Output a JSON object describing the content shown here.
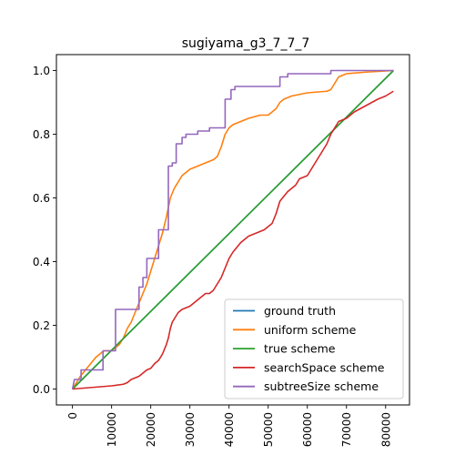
{
  "chart_data": {
    "type": "line",
    "title": "sugiyama_g3_7_7_7",
    "xlabel": "",
    "ylabel": "",
    "xlim": [
      -4100,
      86100
    ],
    "ylim": [
      -0.05,
      1.05
    ],
    "xticks": [
      0,
      10000,
      20000,
      30000,
      40000,
      50000,
      60000,
      70000,
      80000
    ],
    "yticks": [
      0.0,
      0.2,
      0.4,
      0.6,
      0.8,
      1.0
    ],
    "xtick_labels": [
      "0",
      "10000",
      "20000",
      "30000",
      "40000",
      "50000",
      "60000",
      "70000",
      "80000"
    ],
    "ytick_labels": [
      "0.0",
      "0.2",
      "0.4",
      "0.6",
      "0.8",
      "1.0"
    ],
    "legend_position": "lower-right",
    "grid": false,
    "series": [
      {
        "name": "ground truth",
        "color": "#1f77b4",
        "points": [
          [
            0,
            0
          ],
          [
            82000,
            1.0
          ]
        ]
      },
      {
        "name": "uniform scheme",
        "color": "#ff7f0e",
        "points": [
          [
            0,
            0
          ],
          [
            1000,
            0.02
          ],
          [
            2000,
            0.04
          ],
          [
            4000,
            0.07
          ],
          [
            6000,
            0.1
          ],
          [
            8000,
            0.12
          ],
          [
            10000,
            0.12
          ],
          [
            11000,
            0.13
          ],
          [
            12000,
            0.14
          ],
          [
            13000,
            0.16
          ],
          [
            14000,
            0.19
          ],
          [
            15000,
            0.21
          ],
          [
            16000,
            0.24
          ],
          [
            17000,
            0.27
          ],
          [
            18000,
            0.3
          ],
          [
            19000,
            0.33
          ],
          [
            20000,
            0.37
          ],
          [
            21000,
            0.41
          ],
          [
            22000,
            0.45
          ],
          [
            23000,
            0.49
          ],
          [
            24000,
            0.54
          ],
          [
            25000,
            0.6
          ],
          [
            26000,
            0.63
          ],
          [
            27000,
            0.65
          ],
          [
            28000,
            0.67
          ],
          [
            29000,
            0.68
          ],
          [
            30000,
            0.69
          ],
          [
            32000,
            0.7
          ],
          [
            34000,
            0.71
          ],
          [
            36000,
            0.72
          ],
          [
            37000,
            0.73
          ],
          [
            38000,
            0.76
          ],
          [
            39000,
            0.8
          ],
          [
            40000,
            0.82
          ],
          [
            41000,
            0.83
          ],
          [
            43000,
            0.84
          ],
          [
            45000,
            0.85
          ],
          [
            48000,
            0.86
          ],
          [
            50000,
            0.86
          ],
          [
            51000,
            0.87
          ],
          [
            52000,
            0.88
          ],
          [
            53000,
            0.9
          ],
          [
            54000,
            0.91
          ],
          [
            56000,
            0.92
          ],
          [
            60000,
            0.93
          ],
          [
            65000,
            0.935
          ],
          [
            66000,
            0.94
          ],
          [
            67000,
            0.96
          ],
          [
            68000,
            0.98
          ],
          [
            70000,
            0.99
          ],
          [
            75000,
            0.995
          ],
          [
            82000,
            1.0
          ]
        ]
      },
      {
        "name": "true scheme",
        "color": "#2ca02c",
        "points": [
          [
            0,
            0
          ],
          [
            82000,
            1.0
          ]
        ]
      },
      {
        "name": "searchSpace scheme",
        "color": "#d62728",
        "points": [
          [
            0,
            0
          ],
          [
            5000,
            0.005
          ],
          [
            10000,
            0.01
          ],
          [
            13000,
            0.015
          ],
          [
            14000,
            0.02
          ],
          [
            15000,
            0.03
          ],
          [
            16000,
            0.035
          ],
          [
            17000,
            0.04
          ],
          [
            18000,
            0.05
          ],
          [
            19000,
            0.06
          ],
          [
            20000,
            0.065
          ],
          [
            21000,
            0.08
          ],
          [
            22000,
            0.09
          ],
          [
            23000,
            0.11
          ],
          [
            24000,
            0.14
          ],
          [
            24500,
            0.16
          ],
          [
            25000,
            0.19
          ],
          [
            25500,
            0.21
          ],
          [
            26000,
            0.22
          ],
          [
            27000,
            0.24
          ],
          [
            28000,
            0.25
          ],
          [
            30000,
            0.26
          ],
          [
            31000,
            0.27
          ],
          [
            32000,
            0.28
          ],
          [
            33000,
            0.29
          ],
          [
            34000,
            0.3
          ],
          [
            35000,
            0.3
          ],
          [
            36000,
            0.31
          ],
          [
            37000,
            0.33
          ],
          [
            38000,
            0.35
          ],
          [
            39000,
            0.38
          ],
          [
            40000,
            0.41
          ],
          [
            41000,
            0.43
          ],
          [
            43000,
            0.46
          ],
          [
            45000,
            0.48
          ],
          [
            47000,
            0.49
          ],
          [
            49000,
            0.5
          ],
          [
            50000,
            0.51
          ],
          [
            51000,
            0.52
          ],
          [
            52000,
            0.55
          ],
          [
            53000,
            0.59
          ],
          [
            55000,
            0.62
          ],
          [
            57000,
            0.64
          ],
          [
            58000,
            0.66
          ],
          [
            60000,
            0.67
          ],
          [
            61000,
            0.69
          ],
          [
            62000,
            0.71
          ],
          [
            63000,
            0.73
          ],
          [
            64000,
            0.75
          ],
          [
            65000,
            0.77
          ],
          [
            66000,
            0.8
          ],
          [
            67000,
            0.82
          ],
          [
            68000,
            0.84
          ],
          [
            70000,
            0.85
          ],
          [
            72000,
            0.87
          ],
          [
            75000,
            0.89
          ],
          [
            78000,
            0.91
          ],
          [
            80000,
            0.92
          ],
          [
            82000,
            0.935
          ]
        ]
      },
      {
        "name": "subtreeSize scheme",
        "color": "#9467bd",
        "points": [
          [
            0,
            0
          ],
          [
            500,
            0.03
          ],
          [
            2200,
            0.03
          ],
          [
            2200,
            0.06
          ],
          [
            7800,
            0.06
          ],
          [
            7800,
            0.12
          ],
          [
            11000,
            0.12
          ],
          [
            11000,
            0.25
          ],
          [
            17000,
            0.25
          ],
          [
            17000,
            0.32
          ],
          [
            18000,
            0.32
          ],
          [
            18000,
            0.35
          ],
          [
            19000,
            0.35
          ],
          [
            19000,
            0.41
          ],
          [
            22000,
            0.41
          ],
          [
            22000,
            0.5
          ],
          [
            24500,
            0.5
          ],
          [
            24500,
            0.7
          ],
          [
            25500,
            0.7
          ],
          [
            25500,
            0.71
          ],
          [
            26500,
            0.71
          ],
          [
            26500,
            0.77
          ],
          [
            28000,
            0.77
          ],
          [
            28000,
            0.79
          ],
          [
            29000,
            0.79
          ],
          [
            29000,
            0.8
          ],
          [
            32000,
            0.8
          ],
          [
            32000,
            0.81
          ],
          [
            35000,
            0.81
          ],
          [
            35000,
            0.82
          ],
          [
            39000,
            0.82
          ],
          [
            39000,
            0.91
          ],
          [
            40500,
            0.91
          ],
          [
            40500,
            0.94
          ],
          [
            41500,
            0.94
          ],
          [
            41500,
            0.95
          ],
          [
            53000,
            0.95
          ],
          [
            53000,
            0.98
          ],
          [
            55000,
            0.98
          ],
          [
            55000,
            0.99
          ],
          [
            66000,
            0.99
          ],
          [
            66000,
            1.0
          ],
          [
            82000,
            1.0
          ]
        ]
      }
    ]
  }
}
